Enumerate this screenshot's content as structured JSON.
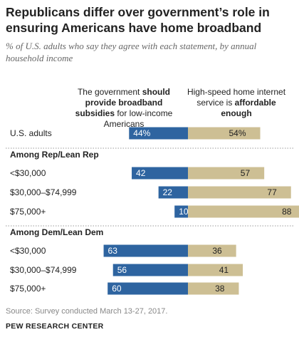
{
  "title": "Republicans differ over government’s role in ensuring Americans have home broadband",
  "subtitle": "% of U.S. adults who say they agree with each statement, by annual household income",
  "column_headers": {
    "left": {
      "pre": "The government ",
      "bold": "should provide broadband subsidies",
      "post": " for low-income Americans"
    },
    "right": {
      "pre": "High-speed home internet service is ",
      "bold": "affordable enough",
      "post": ""
    }
  },
  "colors": {
    "left_bar": "#2e64a0",
    "right_bar": "#cdbf94",
    "divider": "#999999"
  },
  "footer": {
    "source": "Source: Survey conducted March 13-27, 2017.",
    "brand": "PEW RESEARCH CENTER"
  },
  "chart_data": {
    "type": "bar",
    "orientation": "horizontal",
    "layout": "diverging",
    "series": [
      {
        "name": "The government should provide broadband subsidies for low-income Americans",
        "color": "#2e64a0"
      },
      {
        "name": "High-speed home internet service is affordable enough",
        "color": "#cdbf94"
      }
    ],
    "groups": [
      {
        "label": "",
        "rows": [
          {
            "label": "U.S. adults",
            "left": 44,
            "right": 54,
            "left_text": "44%",
            "right_text": "54%"
          }
        ]
      },
      {
        "label": "Among Rep/Lean Rep",
        "rows": [
          {
            "label": "<$30,000",
            "left": 42,
            "right": 57,
            "left_text": "42",
            "right_text": "57"
          },
          {
            "label": "$30,000–$74,999",
            "left": 22,
            "right": 77,
            "left_text": "22",
            "right_text": "77"
          },
          {
            "label": "$75,000+",
            "left": 10,
            "right": 88,
            "left_text": "10",
            "right_text": "88"
          }
        ]
      },
      {
        "label": "Among Dem/Lean Dem",
        "rows": [
          {
            "label": "<$30,000",
            "left": 63,
            "right": 36,
            "left_text": "63",
            "right_text": "36"
          },
          {
            "label": "$30,000–$74,999",
            "left": 56,
            "right": 41,
            "left_text": "56",
            "right_text": "41"
          },
          {
            "label": "$75,000+",
            "left": 60,
            "right": 38,
            "left_text": "60",
            "right_text": "38"
          }
        ]
      }
    ]
  }
}
